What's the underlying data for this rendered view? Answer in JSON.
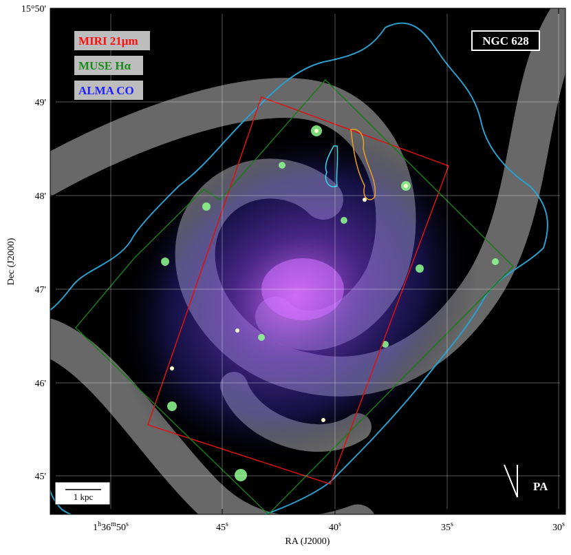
{
  "figure": {
    "legend": [
      "MIRI 21μm",
      "MUSE Hα",
      "ALMA CO"
    ],
    "object": "NGC 628",
    "scale_bar": "1 kpc",
    "pa_label": "PA",
    "x_axis": {
      "label": "RA (J2000)",
      "ticks": [
        [
          "1",
          "h",
          "36",
          "m",
          "50",
          "s"
        ],
        [
          "45",
          "s"
        ],
        [
          "40",
          "s"
        ],
        [
          "35",
          "s"
        ],
        [
          "30",
          "s"
        ]
      ]
    },
    "y_axis": {
      "label": "Dec (J2000)",
      "ticks": [
        "15°50'",
        "49'",
        "48'",
        "47'",
        "46'",
        "45'"
      ]
    }
  }
}
